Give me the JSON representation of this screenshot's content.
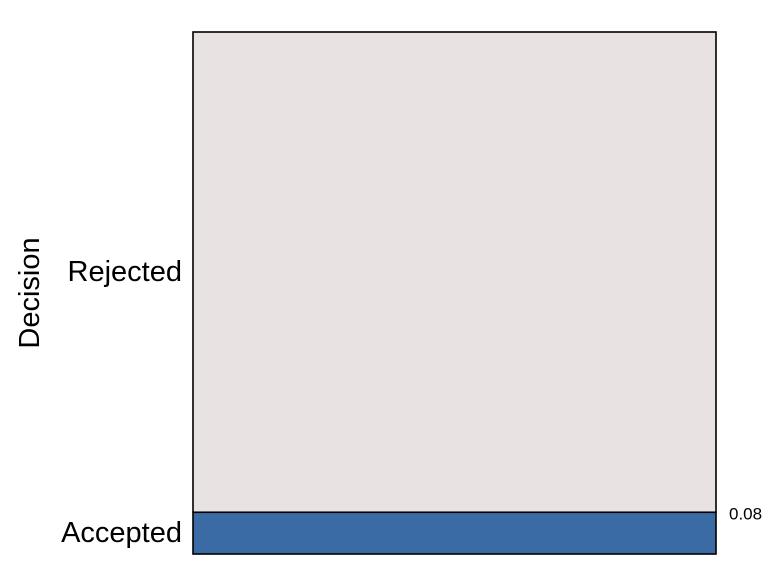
{
  "chart_data": {
    "type": "bar",
    "subtype": "stacked-100-percent-vertical-spine",
    "ylabel": "Decision",
    "categories": [
      "Accepted",
      "Rejected"
    ],
    "values": [
      0.08,
      0.92
    ],
    "data_labels": [
      "0.08",
      ""
    ],
    "colors": {
      "Accepted": "#3a6ba5",
      "Rejected": "#e8e2e2",
      "outline": "#000000"
    },
    "grid": false,
    "legend": "none"
  }
}
